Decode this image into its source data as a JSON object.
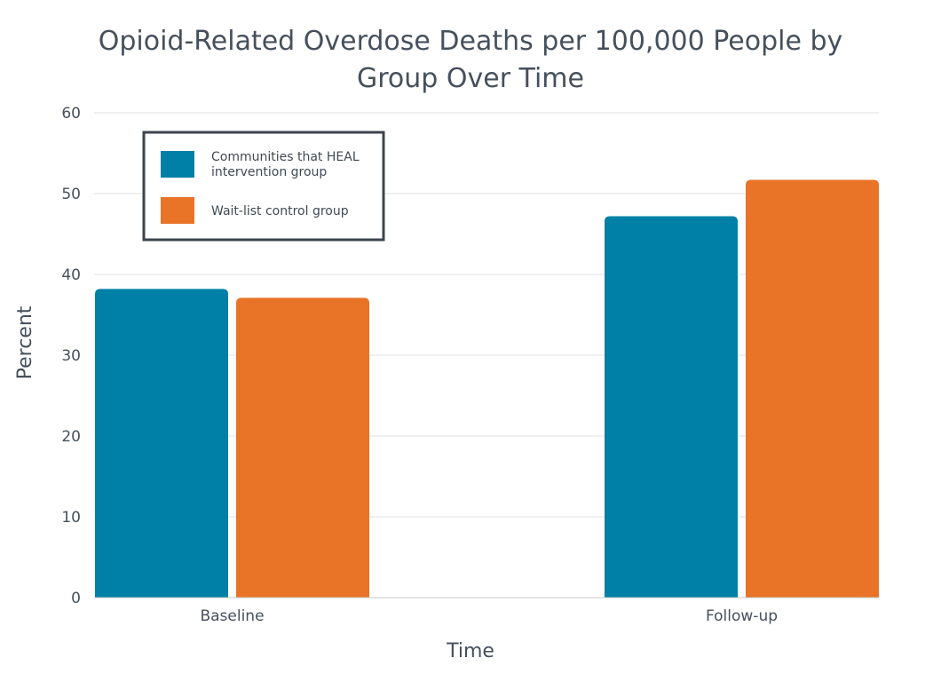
{
  "chart_data": {
    "type": "bar",
    "title_lines": [
      "Opioid-Related Overdose Deaths per 100,000 People by",
      "Group Over Time"
    ],
    "xlabel": "Time",
    "ylabel": "Percent",
    "categories": [
      "Baseline",
      "Follow-up"
    ],
    "yticks": [
      "0",
      "10",
      "20",
      "30",
      "40",
      "50",
      "60"
    ],
    "ylim": [
      0,
      60
    ],
    "grid": true,
    "legend_placement": "top-left",
    "series": [
      {
        "name_lines": [
          "Communities that HEAL",
          "intervention group"
        ],
        "color": "#0080a6",
        "values": [
          38.2,
          47.2
        ]
      },
      {
        "name_lines": [
          "Wait-list control group"
        ],
        "color": "#e97327",
        "values": [
          37.1,
          51.7
        ]
      }
    ]
  },
  "colors": {
    "legend_border": "#3b444e",
    "gridline": "#e2e2e2"
  }
}
